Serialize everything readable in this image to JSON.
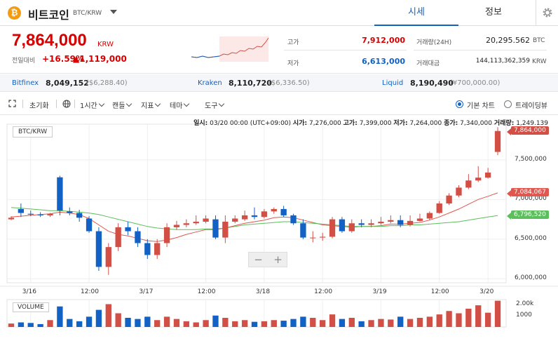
{
  "header": {
    "coin_icon": "bitcoin-icon",
    "coin_symbol": "₿",
    "coin_name": "비트코인",
    "pair": "BTC/KRW",
    "tab_quote": "시세",
    "tab_info": "정보",
    "settings_icon": "gear-icon"
  },
  "summary": {
    "price": "7,864,000",
    "unit": "KRW",
    "change_label": "전일대비",
    "change_pct": "+16.59%",
    "change_abs": "▲1,119,000",
    "high_label": "고가",
    "high": "7,912,000",
    "low_label": "저가",
    "low": "6,613,000",
    "volume_label": "거래량(24H)",
    "volume": "20,295.562",
    "volume_unit": "BTC",
    "amount_label": "거래대금",
    "amount": "144,113,362,359",
    "amount_unit": "KRW"
  },
  "exchanges": [
    {
      "name": "Bitfinex",
      "krw": "8,049,152",
      "usd": "($6,288.40)"
    },
    {
      "name": "Kraken",
      "krw": "8,110,720",
      "usd": "($6,336.50)"
    },
    {
      "name": "Liquid",
      "krw": "8,190,490",
      "usd": "(¥700,000.00)"
    }
  ],
  "toolbar": {
    "expand_icon": "expand-icon",
    "reset": "초기화",
    "globe_icon": "globe-icon",
    "interval": "1시간",
    "candle": "캔들",
    "indicator": "지표",
    "theme": "테마",
    "tools": "도구",
    "basic_chart": "기본 차트",
    "tradingview": "트레이딩뷰"
  },
  "chart": {
    "ohlc": {
      "date_label": "일시:",
      "date": "03/20 00:00 (UTC+09:00)",
      "open_label": "시가:",
      "open": "7,276,000",
      "high_label": "고가:",
      "high": "7,399,000",
      "low_label": "저가:",
      "low": "7,264,000",
      "close_label": "종가:",
      "close": "7,340,000",
      "volume_label": "거래량:",
      "volume": "1,249.139"
    },
    "pair_label": "BTC/KRW",
    "volume_label": "VOLUME",
    "zoom_out": "−",
    "zoom_in": "+",
    "y_ticks": [
      "7,500,000",
      "7,000,000",
      "6,500,000",
      "6,000,000"
    ],
    "x_ticks": [
      "3/16",
      "12:00",
      "3/17",
      "12:00",
      "3/18",
      "12:00",
      "3/19",
      "12:00",
      "3/20"
    ],
    "vol_ticks": [
      "2.00k",
      "1000"
    ],
    "tag_price": "7,864,000",
    "tag_ma1": "7,084,067",
    "tag_ma2": "6,796,520",
    "up_color": "#d24f45",
    "down_color": "#1261c4",
    "ma_short_color": "#e0574f",
    "ma_long_color": "#5bbf5b"
  },
  "chart_data": {
    "type": "candlestick",
    "title": "",
    "xlabel": "",
    "ylabel": "",
    "y_unit": "KRW",
    "ylim": [
      5950000,
      7950000
    ],
    "x": [
      "3/15 22:00",
      "3/16 00:00",
      "3/16 02:00",
      "3/16 04:00",
      "3/16 06:00",
      "3/16 08:00",
      "3/16 10:00",
      "3/16 12:00",
      "3/16 14:00",
      "3/16 16:00",
      "3/16 18:00",
      "3/16 20:00",
      "3/16 22:00",
      "3/17 00:00",
      "3/17 02:00",
      "3/17 04:00",
      "3/17 06:00",
      "3/17 08:00",
      "3/17 10:00",
      "3/17 12:00",
      "3/17 14:00",
      "3/17 16:00",
      "3/17 18:00",
      "3/17 20:00",
      "3/17 22:00",
      "3/18 00:00",
      "3/18 02:00",
      "3/18 04:00",
      "3/18 06:00",
      "3/18 08:00",
      "3/18 10:00",
      "3/18 12:00",
      "3/18 14:00",
      "3/18 16:00",
      "3/18 18:00",
      "3/18 20:00",
      "3/18 22:00",
      "3/19 00:00",
      "3/19 02:00",
      "3/19 04:00",
      "3/19 06:00",
      "3/19 08:00",
      "3/19 10:00",
      "3/19 12:00",
      "3/19 14:00",
      "3/19 16:00",
      "3/19 18:00",
      "3/19 20:00",
      "3/19 22:00",
      "3/20 00:00",
      "3/20 02:00"
    ],
    "open": [
      6750000,
      6880000,
      6820000,
      6810000,
      6800000,
      7280000,
      6850000,
      6830000,
      6760000,
      6600000,
      6150000,
      6400000,
      6650000,
      6600000,
      6450000,
      6300000,
      6450000,
      6650000,
      6680000,
      6700000,
      6720000,
      6750000,
      6520000,
      6720000,
      6750000,
      6800000,
      6780000,
      6850000,
      6880000,
      6800000,
      6700000,
      6520000,
      6520000,
      6530000,
      6750000,
      6600000,
      6700000,
      6680000,
      6700000,
      6720000,
      6740000,
      6680000,
      6730000,
      6760000,
      6830000,
      6950000,
      7050000,
      7150000,
      7240000,
      7276000,
      7600000
    ],
    "high": [
      6790000,
      6950000,
      6860000,
      6840000,
      6830000,
      7300000,
      6900000,
      6870000,
      6790000,
      6650000,
      6450000,
      6700000,
      6720000,
      6650000,
      6500000,
      6500000,
      6700000,
      6730000,
      6750000,
      6800000,
      6800000,
      6800000,
      6800000,
      6800000,
      6860000,
      6900000,
      6880000,
      6900000,
      6920000,
      6820000,
      6750000,
      6600000,
      6580000,
      6780000,
      6780000,
      6750000,
      6750000,
      6750000,
      6780000,
      6800000,
      6800000,
      6800000,
      6820000,
      6850000,
      6980000,
      7080000,
      7180000,
      7320000,
      7420000,
      7399000,
      7912000
    ],
    "low": [
      6740000,
      6780000,
      6790000,
      6780000,
      6780000,
      6800000,
      6800000,
      6720000,
      6580000,
      6100000,
      6050000,
      6350000,
      6550000,
      6400000,
      6250000,
      6250000,
      6400000,
      6620000,
      6650000,
      6680000,
      6700000,
      6500000,
      6450000,
      6700000,
      6730000,
      6750000,
      6760000,
      6820000,
      6780000,
      6680000,
      6500000,
      6460000,
      6480000,
      6510000,
      6580000,
      6580000,
      6650000,
      6650000,
      6680000,
      6700000,
      6650000,
      6660000,
      6720000,
      6740000,
      6820000,
      6930000,
      7030000,
      7130000,
      7220000,
      7264000,
      7560000
    ],
    "close": [
      6770000,
      6830000,
      6810000,
      6800000,
      6820000,
      6860000,
      6830000,
      6770000,
      6600000,
      6150000,
      6400000,
      6650000,
      6600000,
      6450000,
      6300000,
      6450000,
      6650000,
      6680000,
      6700000,
      6720000,
      6760000,
      6520000,
      6720000,
      6760000,
      6800000,
      6780000,
      6850000,
      6880000,
      6800000,
      6700000,
      6520000,
      6520000,
      6530000,
      6750000,
      6600000,
      6700000,
      6680000,
      6700000,
      6720000,
      6740000,
      6680000,
      6730000,
      6760000,
      6830000,
      6950000,
      7050000,
      7150000,
      7240000,
      7276000,
      7340000,
      7864000
    ],
    "volume": [
      300,
      400,
      350,
      250,
      600,
      1800,
      700,
      500,
      900,
      1500,
      2000,
      1200,
      800,
      700,
      900,
      600,
      900,
      700,
      500,
      400,
      600,
      1000,
      800,
      500,
      600,
      450,
      500,
      600,
      550,
      700,
      900,
      800,
      600,
      1100,
      700,
      800,
      500,
      600,
      700,
      650,
      900,
      700,
      800,
      900,
      1100,
      1400,
      1200,
      1600,
      1900,
      1249.139,
      2300
    ],
    "series": [
      {
        "name": "",
        "type": "line",
        "color": "#e0574f",
        "values": [
          6780000,
          6790000,
          6800000,
          6810000,
          6820000,
          6840000,
          6830000,
          6810000,
          6760000,
          6680000,
          6600000,
          6560000,
          6540000,
          6510000,
          6480000,
          6470000,
          6490000,
          6520000,
          6560000,
          6590000,
          6620000,
          6620000,
          6640000,
          6670000,
          6700000,
          6720000,
          6740000,
          6770000,
          6780000,
          6770000,
          6740000,
          6710000,
          6680000,
          6670000,
          6660000,
          6650000,
          6660000,
          6660000,
          6670000,
          6690000,
          6690000,
          6700000,
          6710000,
          6740000,
          6780000,
          6830000,
          6880000,
          6940000,
          7000000,
          7040000,
          7084067
        ]
      },
      {
        "name": "",
        "type": "line",
        "color": "#5bbf5b",
        "values": [
          6900000,
          6890000,
          6880000,
          6870000,
          6860000,
          6860000,
          6850000,
          6840000,
          6830000,
          6810000,
          6780000,
          6750000,
          6720000,
          6690000,
          6660000,
          6640000,
          6630000,
          6620000,
          6620000,
          6620000,
          6630000,
          6630000,
          6640000,
          6660000,
          6680000,
          6690000,
          6700000,
          6710000,
          6720000,
          6720000,
          6710000,
          6700000,
          6690000,
          6680000,
          6670000,
          6660000,
          6660000,
          6660000,
          6660000,
          6670000,
          6670000,
          6680000,
          6680000,
          6690000,
          6700000,
          6710000,
          6720000,
          6740000,
          6760000,
          6780000,
          6796520
        ]
      }
    ]
  }
}
